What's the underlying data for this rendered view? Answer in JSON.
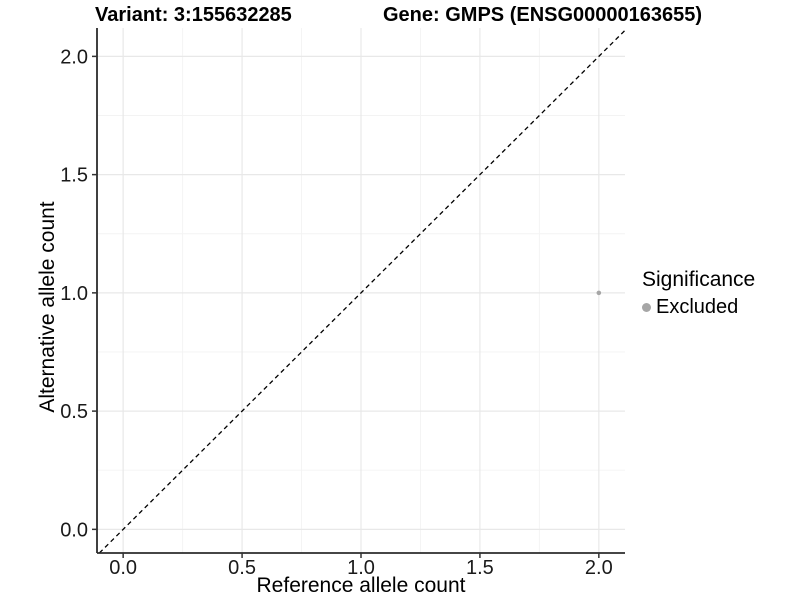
{
  "title": {
    "variant": "Variant: 3:155632285",
    "gene": "Gene: GMPS (ENSG00000163655)"
  },
  "chart_data": {
    "type": "scatter",
    "xlabel": "Reference allele count",
    "ylabel": "Alternative allele count",
    "xlim": [
      -0.11,
      2.11
    ],
    "ylim": [
      -0.1,
      2.12
    ],
    "x_major_ticks": [
      0.0,
      0.5,
      1.0,
      1.5,
      2.0
    ],
    "y_major_ticks": [
      0.0,
      0.5,
      1.0,
      1.5,
      2.0
    ],
    "x_minor_ticks": [
      0.25,
      0.75,
      1.25,
      1.75
    ],
    "y_minor_ticks": [
      0.25,
      0.75,
      1.25,
      1.75
    ],
    "tick_decimals": 1,
    "grid": "major+minor",
    "identity_line": {
      "slope": 1,
      "intercept": 0,
      "style": "dashed",
      "color": "#000000"
    },
    "series": [
      {
        "name": "Excluded",
        "color": "#a6a6a6",
        "point_radius": 2.3,
        "points": [
          {
            "x": 2.0,
            "y": 1.0
          }
        ]
      }
    ],
    "legend": {
      "title": "Significance",
      "position": "right",
      "items": [
        {
          "label": "Excluded",
          "color": "#a6a6a6"
        }
      ]
    }
  },
  "colors": {
    "background": "#ffffff",
    "grid_major": "#e8e8e8",
    "grid_minor": "#f3f3f3",
    "axis_line": "#2b2b2b",
    "tick_mark": "#333333",
    "tick_text": "#1a1a1a"
  }
}
